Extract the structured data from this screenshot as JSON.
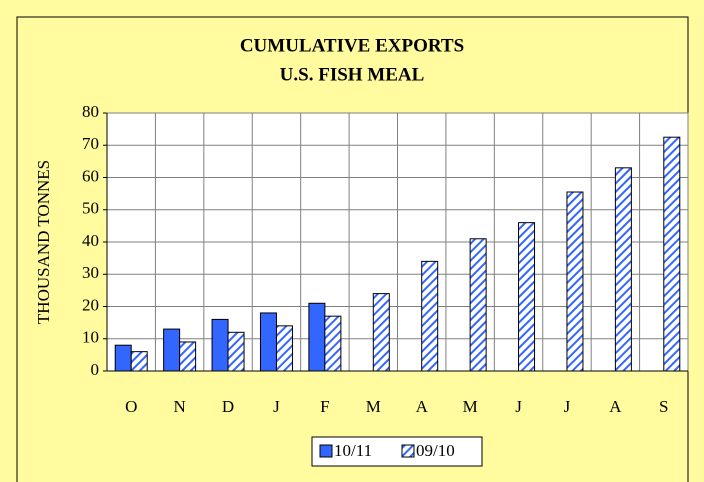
{
  "chart_data": {
    "type": "bar",
    "title": [
      "CUMULATIVE EXPORTS",
      "U.S. FISH MEAL"
    ],
    "y_label": "THOUSAND TONNES",
    "categories": [
      "O",
      "N",
      "D",
      "J",
      "F",
      "M",
      "A",
      "M",
      "J",
      "J",
      "A",
      "S"
    ],
    "series": [
      {
        "name": "10/11",
        "color": "#3366ff",
        "fill": "solid",
        "values": [
          8,
          13,
          16,
          18,
          21,
          null,
          null,
          null,
          null,
          null,
          null,
          null
        ]
      },
      {
        "name": "09/10",
        "color": "#3366ff",
        "fill": "hatched",
        "values": [
          6,
          9,
          12,
          14,
          17,
          24,
          34,
          41,
          46,
          55.5,
          63,
          72.5
        ]
      }
    ],
    "ylim": [
      0,
      80
    ],
    "yticks": [
      0,
      10,
      20,
      30,
      40,
      50,
      60,
      70,
      80
    ],
    "grid": true,
    "legend": "bottom"
  }
}
